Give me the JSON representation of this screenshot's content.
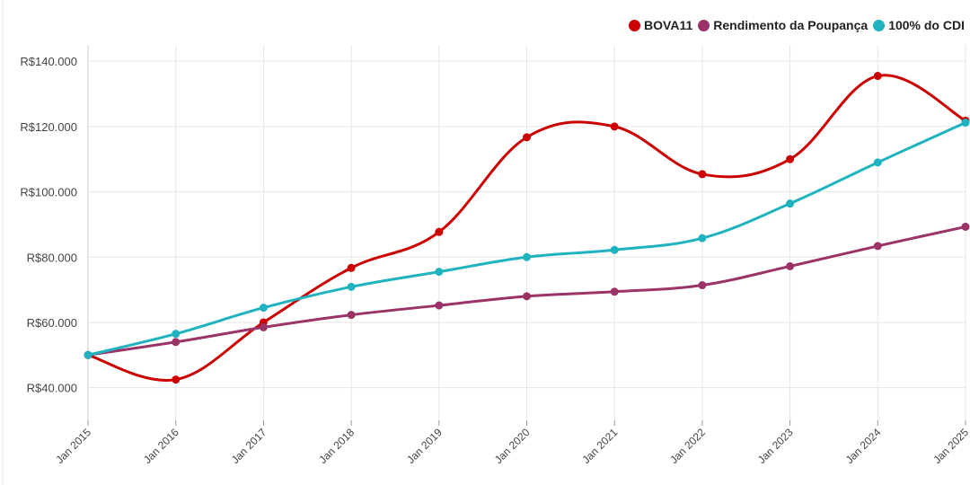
{
  "chart_data": {
    "type": "line",
    "categories": [
      "Jan 2015",
      "Jan 2016",
      "Jan 2017",
      "Jan 2018",
      "Jan 2019",
      "Jan 2020",
      "Jan 2021",
      "Jan 2022",
      "Jan 2023",
      "Jan 2024",
      "Jan 2025"
    ],
    "series": [
      {
        "name": "BOVA11",
        "color": "#cc0000",
        "values": [
          50000,
          42500,
          60000,
          76700,
          87700,
          116700,
          120000,
          105400,
          110000,
          135500,
          121800
        ]
      },
      {
        "name": "Rendimento da Poupança",
        "color": "#9b3368",
        "values": [
          50000,
          54000,
          58500,
          62300,
          65200,
          68000,
          69400,
          71400,
          77200,
          83400,
          89300
        ]
      },
      {
        "name": "100% do CDI",
        "color": "#1fb3bf",
        "values": [
          50000,
          56500,
          64500,
          70900,
          75500,
          80000,
          82200,
          85800,
          96400,
          109000,
          121200
        ]
      }
    ],
    "yticks": [
      40000,
      60000,
      80000,
      100000,
      120000,
      140000
    ],
    "ytick_labels": [
      "R$40.000",
      "R$60.000",
      "R$80.000",
      "R$100.000",
      "R$120.000",
      "R$140.000"
    ],
    "ylim": [
      30000,
      145000
    ],
    "legend_position": "top-right",
    "grid": true
  }
}
